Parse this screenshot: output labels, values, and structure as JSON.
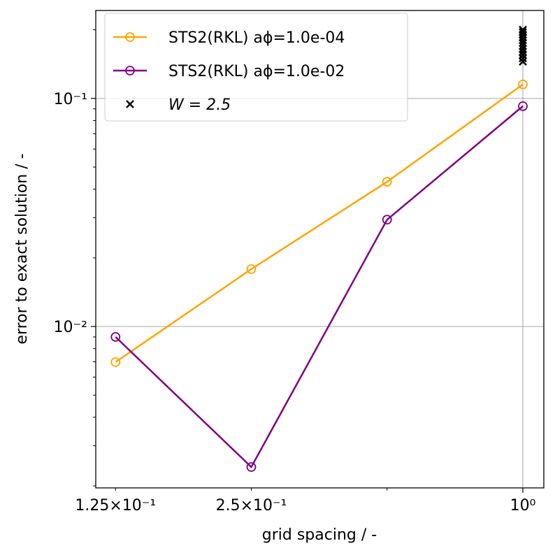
{
  "chart_data": {
    "type": "line",
    "xlabel": "grid spacing / -",
    "ylabel": "error to exact solution / -",
    "xscale": "log",
    "yscale": "log",
    "xlim": [
      0.113,
      1.113
    ],
    "ylim": [
      0.00196,
      0.243
    ],
    "xticks": [
      {
        "value": 1,
        "label": "10⁰"
      }
    ],
    "xminorticks": [
      {
        "value": 0.125,
        "label": "1.25×10⁻¹"
      },
      {
        "value": 0.25,
        "label": "2.5×10⁻¹"
      },
      0.5
    ],
    "yticks": [
      {
        "value": 0.01,
        "label": "10⁻²"
      },
      {
        "value": 0.1,
        "label": "10⁻¹"
      }
    ],
    "yminorticks": [
      0.002,
      0.003,
      0.004,
      0.005,
      0.006,
      0.007,
      0.008,
      0.009,
      0.02,
      0.03,
      0.04,
      0.05,
      0.06,
      0.07,
      0.08,
      0.09,
      0.2
    ],
    "grid": true,
    "legend": "upper left",
    "x": [
      0.125,
      0.25,
      0.5,
      1.0
    ],
    "series": [
      {
        "name": "STS2(RKL) aϕ=1.0e-04",
        "color": "#ffa500",
        "values": [
          0.00698,
          0.01785,
          0.0431,
          0.1152
        ]
      },
      {
        "name": "STS2(RKL) aϕ=1.0e-02",
        "color": "#800080",
        "values": [
          0.009,
          0.00242,
          0.0294,
          0.0925
        ]
      }
    ],
    "scatter": {
      "name": "W = 2.5",
      "color": "#000000",
      "x": [
        1,
        1,
        1,
        1,
        1,
        1,
        1,
        1,
        1,
        1,
        1,
        1
      ],
      "values": [
        0.145,
        0.15,
        0.155,
        0.16,
        0.165,
        0.17,
        0.175,
        0.18,
        0.185,
        0.19,
        0.195,
        0.2
      ]
    }
  }
}
